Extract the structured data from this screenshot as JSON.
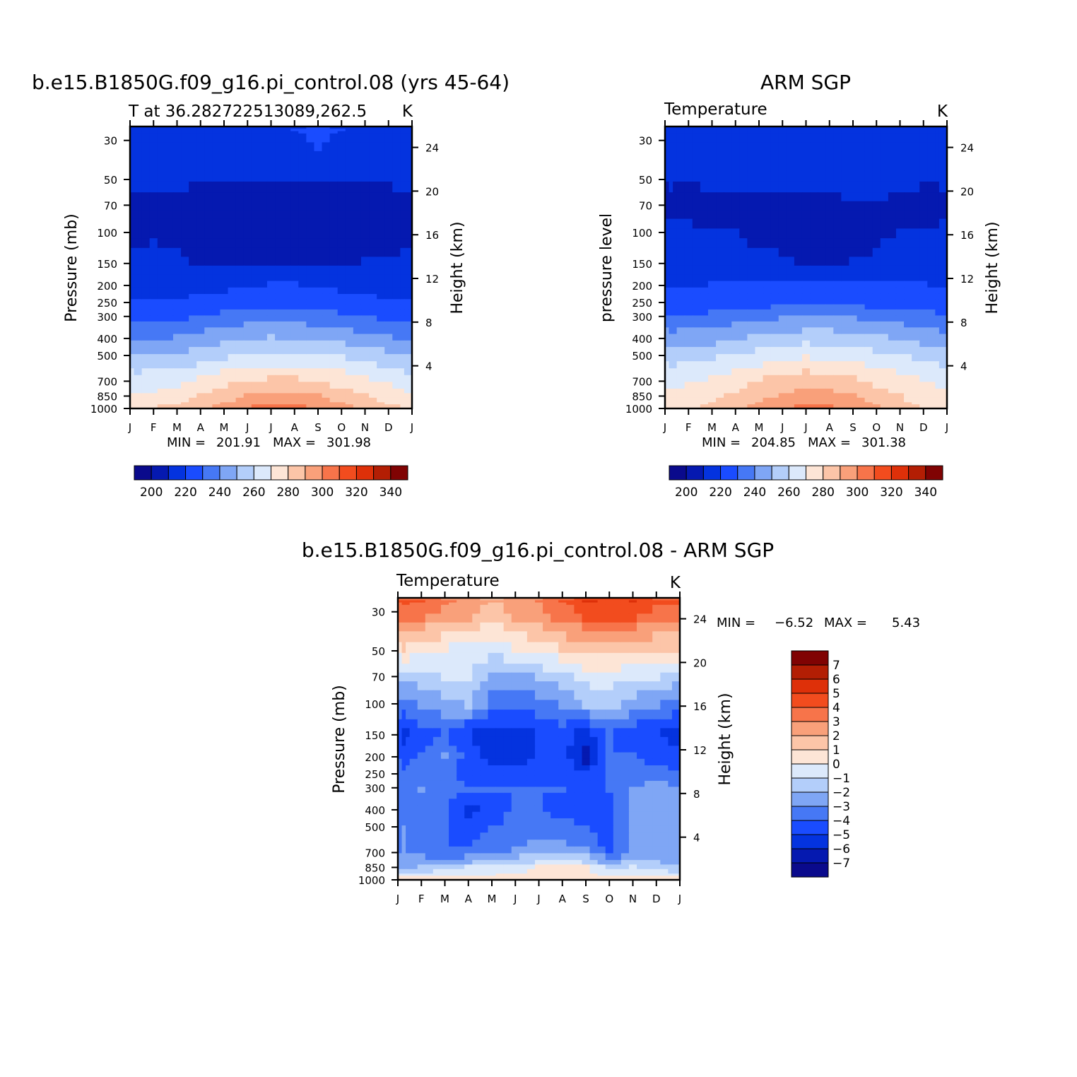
{
  "colors": {
    "temperature_levels": [
      "#0a0a8c",
      "#0519b0",
      "#0433df",
      "#1a4cff",
      "#4678f5",
      "#7fa6f5",
      "#b3cefa",
      "#dce9fb",
      "#fde5d6",
      "#fcc5a8",
      "#f9a07a",
      "#f7744a",
      "#f24c1e",
      "#de3009",
      "#b31e04",
      "#800303"
    ],
    "difference_levels": [
      "#0a0a8c",
      "#0519b0",
      "#0433df",
      "#1a4cff",
      "#4678f5",
      "#7fa6f5",
      "#b3cefa",
      "#dce9fb",
      "#fde5d6",
      "#fcc5a8",
      "#f9a07a",
      "#f7744a",
      "#f24c1e",
      "#de3009",
      "#b31e04",
      "#800303"
    ]
  },
  "chart_data": [
    {
      "id": "model",
      "type": "heatmap",
      "title": "b.e15.B1850G.f09_g16.pi_control.08 (yrs 45-64)",
      "left_subtitle": "T at 36.282722513089,262.5",
      "right_subtitle": "K",
      "ylabel": "Pressure (mb)",
      "ylabel_right": "Height (km)",
      "month_labels": [
        "J",
        "F",
        "M",
        "A",
        "M",
        "J",
        "J",
        "A",
        "S",
        "O",
        "N",
        "D",
        "J"
      ],
      "pressure_ticks": [
        "30",
        "50",
        "70",
        "100",
        "150",
        "200",
        "250",
        "300",
        "400",
        "500",
        "700",
        "850",
        "1000"
      ],
      "height_ticks": [
        "4",
        "8",
        "12",
        "16",
        "20",
        "24"
      ],
      "ylim_mb": [
        1000,
        25
      ],
      "contour_levels": [
        200,
        210,
        220,
        230,
        240,
        250,
        260,
        270,
        280,
        290,
        300,
        310,
        320,
        330,
        340
      ],
      "colorbar_labels": [
        "200",
        "220",
        "240",
        "260",
        "280",
        "300",
        "320",
        "340"
      ],
      "min_label": "MIN = ",
      "min_value": "201.91",
      "max_label": "MAX = ",
      "max_value": "301.98",
      "z_levels_mb": [
        25,
        30,
        50,
        70,
        100,
        150,
        200,
        250,
        300,
        400,
        500,
        700,
        850,
        1000
      ],
      "z": [
        [
          215,
          214,
          215,
          216,
          217,
          218,
          219,
          220,
          221,
          220,
          219,
          216,
          215
        ],
        [
          214,
          213,
          214,
          215,
          216,
          217,
          218,
          219,
          220,
          219,
          217,
          215,
          214
        ],
        [
          212,
          212,
          212,
          211,
          210,
          211,
          211,
          211,
          210,
          210,
          210,
          211,
          212
        ],
        [
          208,
          207,
          207,
          206,
          206,
          206,
          206,
          206,
          205,
          205,
          206,
          207,
          208
        ],
        [
          209,
          209,
          208,
          206,
          205,
          205,
          205,
          205,
          205,
          205,
          205,
          207,
          209
        ],
        [
          211,
          212,
          212,
          208,
          208,
          209,
          209,
          209,
          209,
          209,
          210,
          211,
          211
        ],
        [
          216,
          216,
          216,
          217,
          218,
          219,
          220,
          220,
          219,
          218,
          217,
          216,
          216
        ],
        [
          220,
          220,
          221,
          222,
          223,
          224,
          225,
          225,
          224,
          223,
          222,
          221,
          220
        ],
        [
          227,
          227,
          228,
          231,
          234,
          236,
          237,
          236,
          235,
          233,
          231,
          228,
          227
        ],
        [
          238,
          238,
          240,
          243,
          246,
          249,
          250,
          249,
          248,
          246,
          243,
          240,
          238
        ],
        [
          251,
          251,
          253,
          256,
          259,
          262,
          263,
          263,
          262,
          260,
          257,
          254,
          251
        ],
        [
          264,
          265,
          267,
          271,
          276,
          279,
          280,
          280,
          278,
          275,
          271,
          267,
          264
        ],
        [
          271,
          272,
          275,
          280,
          286,
          290,
          292,
          292,
          290,
          286,
          281,
          276,
          271
        ],
        [
          278,
          279,
          282,
          287,
          293,
          299,
          302,
          301,
          298,
          292,
          286,
          281,
          278
        ]
      ]
    },
    {
      "id": "obs",
      "type": "heatmap",
      "title": "ARM SGP",
      "left_subtitle": "Temperature",
      "right_subtitle": "K",
      "ylabel": "pressure level",
      "ylabel_right": "Height (km)",
      "month_labels": [
        "J",
        "F",
        "M",
        "A",
        "M",
        "J",
        "J",
        "A",
        "S",
        "O",
        "N",
        "D",
        "J"
      ],
      "pressure_ticks": [
        "30",
        "50",
        "70",
        "100",
        "150",
        "200",
        "250",
        "300",
        "400",
        "500",
        "700",
        "850",
        "1000"
      ],
      "height_ticks": [
        "4",
        "8",
        "12",
        "16",
        "20",
        "24"
      ],
      "ylim_mb": [
        1000,
        25
      ],
      "contour_levels": [
        200,
        210,
        220,
        230,
        240,
        250,
        260,
        270,
        280,
        290,
        300,
        310,
        320,
        330,
        340
      ],
      "colorbar_labels": [
        "200",
        "220",
        "240",
        "260",
        "280",
        "300",
        "320",
        "340"
      ],
      "min_label": "MIN = ",
      "min_value": "204.85",
      "max_label": "MAX = ",
      "max_value": "301.38",
      "z_levels_mb": [
        25,
        30,
        50,
        70,
        100,
        150,
        200,
        250,
        300,
        400,
        500,
        700,
        850,
        1000
      ],
      "z": [
        [
          213,
          213,
          213,
          214,
          215,
          216,
          217,
          217,
          216,
          215,
          214,
          213,
          213
        ],
        [
          213,
          213,
          213,
          213,
          214,
          214,
          215,
          215,
          214,
          214,
          213,
          213,
          213
        ],
        [
          211,
          210,
          211,
          212,
          212,
          213,
          213,
          213,
          213,
          213,
          212,
          211,
          211
        ],
        [
          208,
          208,
          209,
          208,
          208,
          208,
          208,
          208,
          209,
          209,
          208,
          207,
          208
        ],
        [
          211,
          211,
          210,
          210,
          208,
          207,
          207,
          207,
          207,
          209,
          210,
          211,
          211
        ],
        [
          211,
          212,
          212,
          212,
          212,
          211,
          209,
          209,
          210,
          211,
          212,
          212,
          211
        ],
        [
          219,
          219,
          220,
          221,
          222,
          222,
          223,
          223,
          223,
          222,
          221,
          220,
          219
        ],
        [
          222,
          222,
          222,
          224,
          225,
          226,
          227,
          227,
          226,
          225,
          224,
          223,
          222
        ],
        [
          233,
          233,
          234,
          236,
          238,
          240,
          241,
          241,
          240,
          238,
          236,
          234,
          233
        ],
        [
          243,
          244,
          245,
          248,
          251,
          253,
          255,
          255,
          253,
          251,
          248,
          245,
          243
        ],
        [
          256,
          257,
          259,
          262,
          265,
          268,
          270,
          269,
          267,
          264,
          261,
          258,
          256
        ],
        [
          266,
          268,
          270,
          275,
          279,
          283,
          285,
          284,
          281,
          277,
          273,
          269,
          266
        ],
        [
          272,
          274,
          277,
          282,
          287,
          291,
          294,
          293,
          290,
          285,
          280,
          276,
          272
        ],
        [
          276,
          278,
          282,
          287,
          293,
          298,
          301,
          300,
          296,
          290,
          284,
          279,
          276
        ]
      ]
    },
    {
      "id": "diff",
      "type": "heatmap",
      "title": "b.e15.B1850G.f09_g16.pi_control.08 - ARM SGP",
      "left_subtitle": "Temperature",
      "right_subtitle": "K",
      "ylabel": "Pressure (mb)",
      "ylabel_right": "Height (km)",
      "month_labels": [
        "J",
        "F",
        "M",
        "A",
        "M",
        "J",
        "J",
        "A",
        "S",
        "O",
        "N",
        "D",
        "J"
      ],
      "pressure_ticks": [
        "30",
        "50",
        "70",
        "100",
        "150",
        "200",
        "250",
        "300",
        "400",
        "500",
        "700",
        "850",
        "1000"
      ],
      "height_ticks": [
        "4",
        "8",
        "12",
        "16",
        "20",
        "24"
      ],
      "ylim_mb": [
        1000,
        25
      ],
      "contour_levels": [
        -7,
        -6,
        -5,
        -4,
        -3,
        -2,
        -1,
        0,
        1,
        2,
        3,
        4,
        5,
        6,
        7
      ],
      "colorbar_labels": [
        "7",
        "6",
        "5",
        "4",
        "3",
        "2",
        "1",
        "0",
        "−1",
        "−2",
        "−3",
        "−4",
        "−5",
        "−6",
        "−7"
      ],
      "min_label": "MIN = ",
      "min_value": "−6.52",
      "max_label": "MAX = ",
      "max_value": "5.43",
      "z_levels_mb": [
        25,
        30,
        50,
        70,
        100,
        150,
        200,
        250,
        300,
        400,
        500,
        700,
        850,
        1000
      ],
      "z": [
        [
          4.5,
          4.0,
          3.5,
          2.5,
          2.0,
          2.5,
          3.0,
          4.0,
          5.4,
          4.5,
          5.0,
          4.5,
          4.5
        ],
        [
          3.5,
          3.0,
          2.5,
          2.0,
          1.5,
          2.0,
          2.5,
          3.5,
          4.0,
          4.0,
          4.0,
          3.5,
          3.5
        ],
        [
          1.0,
          0.5,
          0.0,
          -0.5,
          -0.5,
          0.0,
          0.5,
          1.0,
          1.5,
          1.5,
          1.5,
          1.0,
          1.0
        ],
        [
          -1.5,
          -1.5,
          -1.0,
          -1.0,
          -2.5,
          -2.5,
          -2.0,
          -1.5,
          -0.5,
          -0.5,
          -1.0,
          -1.0,
          -1.5
        ],
        [
          -3.5,
          -3.0,
          -2.5,
          -2.0,
          -3.5,
          -4.0,
          -3.5,
          -3.0,
          -2.0,
          -1.5,
          -2.5,
          -3.0,
          -3.5
        ],
        [
          -5.5,
          -4.5,
          -4.0,
          -5.0,
          -5.5,
          -5.5,
          -5.0,
          -4.5,
          -5.5,
          -4.0,
          -4.5,
          -5.0,
          -5.5
        ],
        [
          -4.5,
          -4.0,
          -3.0,
          -4.5,
          -5.5,
          -5.5,
          -5.0,
          -4.5,
          -6.5,
          -4.0,
          -4.0,
          -4.5,
          -4.5
        ],
        [
          -4.0,
          -3.5,
          -3.5,
          -4.5,
          -4.5,
          -4.5,
          -4.5,
          -4.5,
          -5.0,
          -4.0,
          -3.5,
          -3.5,
          -4.0
        ],
        [
          -3.5,
          -3.0,
          -3.5,
          -4.0,
          -4.0,
          -4.0,
          -4.0,
          -4.0,
          -4.5,
          -4.0,
          -3.0,
          -2.5,
          -3.0
        ],
        [
          -3.5,
          -3.5,
          -4.0,
          -5.5,
          -4.5,
          -4.0,
          -4.0,
          -4.5,
          -4.5,
          -4.5,
          -3.0,
          -2.5,
          -3.0
        ],
        [
          -3.0,
          -3.5,
          -4.0,
          -4.5,
          -4.0,
          -3.5,
          -3.5,
          -3.5,
          -4.0,
          -4.5,
          -3.0,
          -2.5,
          -3.0
        ],
        [
          -3.0,
          -3.5,
          -4.0,
          -4.0,
          -3.5,
          -3.0,
          -2.5,
          -2.5,
          -3.0,
          -4.5,
          -3.0,
          -2.5,
          -3.0
        ],
        [
          -2.5,
          -2.0,
          -1.5,
          -1.0,
          -1.0,
          -0.5,
          0.0,
          0.5,
          0.0,
          -1.5,
          -1.0,
          -1.5,
          -2.0
        ],
        [
          0.5,
          0.5,
          0.5,
          0.5,
          0.5,
          0.5,
          0.5,
          0.5,
          0.5,
          0.5,
          0.5,
          0.5,
          0.5
        ]
      ]
    }
  ]
}
